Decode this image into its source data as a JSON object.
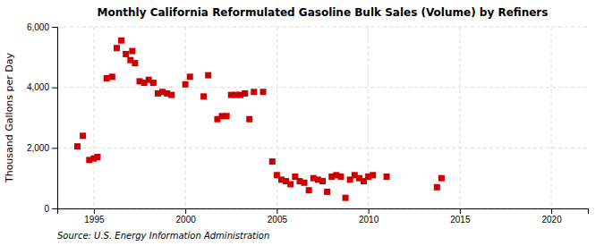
{
  "chart_data": {
    "type": "scatter",
    "title": "Monthly California Reformulated Gasoline Bulk Sales (Volume) by Refiners",
    "ylabel": "Thousand Gallons per Day",
    "source": "Source: U.S. Energy Information Administration",
    "color": "#cc0000",
    "marker": "square",
    "grid": true,
    "xlim": [
      1993,
      2022
    ],
    "xticks": [
      1995,
      2000,
      2005,
      2010,
      2015,
      2020
    ],
    "ylim": [
      0,
      6000
    ],
    "yticks": [
      0,
      {
        "value": 2000,
        "label": "2,000"
      },
      {
        "value": 4000,
        "label": "4,000"
      },
      {
        "value": 6000,
        "label": "6,000"
      }
    ],
    "x": [
      1994.1,
      1994.4,
      1994.75,
      1995.0,
      1995.2,
      1995.7,
      1996.0,
      1996.25,
      1996.5,
      1996.75,
      1997.0,
      1997.1,
      1997.25,
      1997.5,
      1997.75,
      1998.0,
      1998.25,
      1998.5,
      1998.75,
      1999.0,
      1999.25,
      2000.0,
      2000.25,
      2001.0,
      2001.25,
      2001.75,
      2002.0,
      2002.25,
      2002.5,
      2002.75,
      2003.0,
      2003.25,
      2003.5,
      2003.75,
      2004.25,
      2004.75,
      2005.0,
      2005.25,
      2005.5,
      2005.75,
      2006.0,
      2006.25,
      2006.5,
      2006.75,
      2007.0,
      2007.25,
      2007.5,
      2007.75,
      2008.0,
      2008.25,
      2008.5,
      2008.75,
      2009.0,
      2009.25,
      2009.5,
      2009.75,
      2010.0,
      2010.25,
      2011.0,
      2013.75,
      2014.0
    ],
    "values": [
      2050,
      2400,
      1600,
      1650,
      1700,
      4300,
      4350,
      5300,
      5550,
      5100,
      4900,
      5200,
      4800,
      4200,
      4150,
      4250,
      4150,
      3800,
      3850,
      3800,
      3750,
      4100,
      4350,
      3700,
      4400,
      2950,
      3050,
      3050,
      3750,
      3750,
      3750,
      3800,
      2950,
      3850,
      3850,
      1550,
      1100,
      950,
      900,
      800,
      1050,
      900,
      850,
      600,
      1000,
      950,
      900,
      550,
      1050,
      1100,
      1050,
      350,
      950,
      1100,
      1000,
      900,
      1050,
      1100,
      1050,
      700,
      1000
    ]
  }
}
